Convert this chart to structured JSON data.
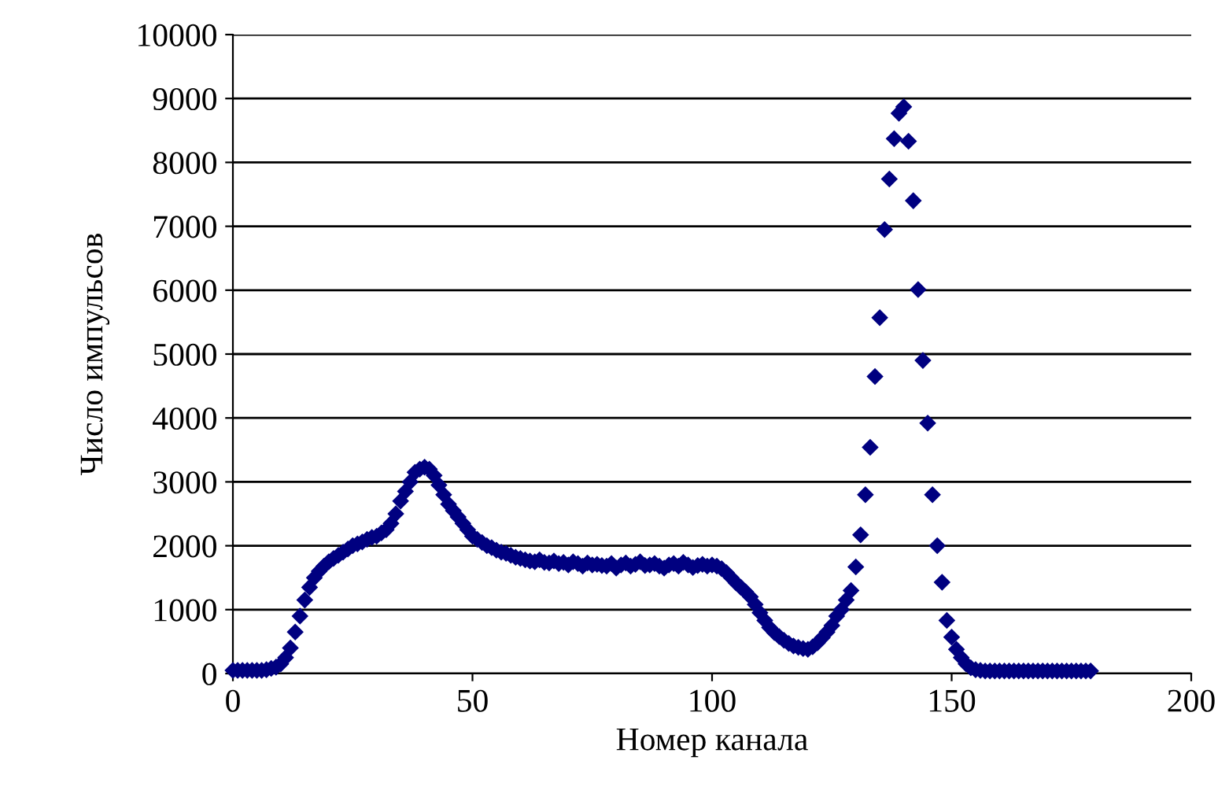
{
  "chart_data": {
    "type": "scatter",
    "xlabel": "Номер канала",
    "ylabel": "Число импульсов",
    "xlim": [
      0,
      200
    ],
    "xticks": [
      0,
      50,
      100,
      150,
      200
    ],
    "ylim": [
      0,
      10000
    ],
    "yticks": [
      0,
      1000,
      2000,
      3000,
      4000,
      5000,
      6000,
      7000,
      8000,
      9000,
      10000
    ],
    "grid": "y",
    "marker": "diamond",
    "legend": false,
    "series": [
      {
        "color": "#000080",
        "x": [
          0,
          1,
          2,
          3,
          4,
          5,
          6,
          7,
          8,
          9,
          10,
          11,
          12,
          13,
          14,
          15,
          16,
          17,
          18,
          19,
          20,
          21,
          22,
          23,
          24,
          25,
          26,
          27,
          28,
          29,
          30,
          31,
          32,
          33,
          34,
          35,
          36,
          37,
          38,
          39,
          40,
          41,
          42,
          43,
          44,
          45,
          46,
          47,
          48,
          49,
          50,
          51,
          52,
          53,
          54,
          55,
          56,
          57,
          58,
          59,
          60,
          61,
          62,
          63,
          64,
          65,
          66,
          67,
          68,
          69,
          70,
          71,
          72,
          73,
          74,
          75,
          76,
          77,
          78,
          79,
          80,
          81,
          82,
          83,
          84,
          85,
          86,
          87,
          88,
          89,
          90,
          91,
          92,
          93,
          94,
          95,
          96,
          97,
          98,
          99,
          100,
          101,
          102,
          103,
          104,
          105,
          106,
          107,
          108,
          109,
          110,
          111,
          112,
          113,
          114,
          115,
          116,
          117,
          118,
          119,
          120,
          121,
          122,
          123,
          124,
          125,
          126,
          127,
          128,
          129,
          130,
          131,
          132,
          133,
          134,
          135,
          136,
          137,
          138,
          139,
          140,
          141,
          142,
          143,
          144,
          145,
          146,
          147,
          148,
          149,
          150,
          151,
          152,
          153,
          154,
          155,
          156,
          157,
          158,
          159,
          160,
          161,
          162,
          163,
          164,
          165,
          166,
          167,
          168,
          169,
          170,
          171,
          172,
          173,
          174,
          175,
          176,
          177,
          178,
          179
        ],
        "values": [
          50,
          50,
          50,
          50,
          50,
          50,
          50,
          60,
          80,
          100,
          150,
          250,
          400,
          650,
          900,
          1150,
          1350,
          1500,
          1600,
          1680,
          1750,
          1800,
          1850,
          1900,
          1950,
          2000,
          2030,
          2060,
          2100,
          2130,
          2150,
          2200,
          2250,
          2350,
          2500,
          2700,
          2850,
          3000,
          3150,
          3200,
          3230,
          3200,
          3100,
          2950,
          2800,
          2650,
          2550,
          2450,
          2350,
          2250,
          2150,
          2100,
          2050,
          2000,
          1970,
          1930,
          1900,
          1880,
          1850,
          1820,
          1800,
          1780,
          1760,
          1750,
          1780,
          1740,
          1730,
          1760,
          1720,
          1740,
          1700,
          1750,
          1720,
          1680,
          1730,
          1700,
          1710,
          1690,
          1680,
          1720,
          1650,
          1700,
          1730,
          1680,
          1710,
          1750,
          1690,
          1700,
          1720,
          1680,
          1650,
          1700,
          1720,
          1680,
          1740,
          1700,
          1660,
          1690,
          1710,
          1680,
          1700,
          1680,
          1640,
          1580,
          1500,
          1420,
          1350,
          1280,
          1200,
          1080,
          950,
          830,
          720,
          640,
          580,
          520,
          470,
          430,
          410,
          390,
          380,
          420,
          480,
          560,
          650,
          750,
          900,
          1000,
          1150,
          1300,
          1670,
          2170,
          2800,
          3540,
          4650,
          5570,
          6950,
          7740,
          8370,
          8770,
          8870,
          8330,
          7400,
          6010,
          4900,
          3920,
          2800,
          2000,
          1430,
          830,
          570,
          380,
          250,
          150,
          90,
          60,
          50,
          40,
          40,
          40,
          40,
          40,
          40,
          40,
          40,
          40,
          40,
          40,
          40,
          40,
          40,
          40,
          40,
          40,
          40,
          40,
          40,
          40,
          40,
          40
        ]
      }
    ]
  }
}
